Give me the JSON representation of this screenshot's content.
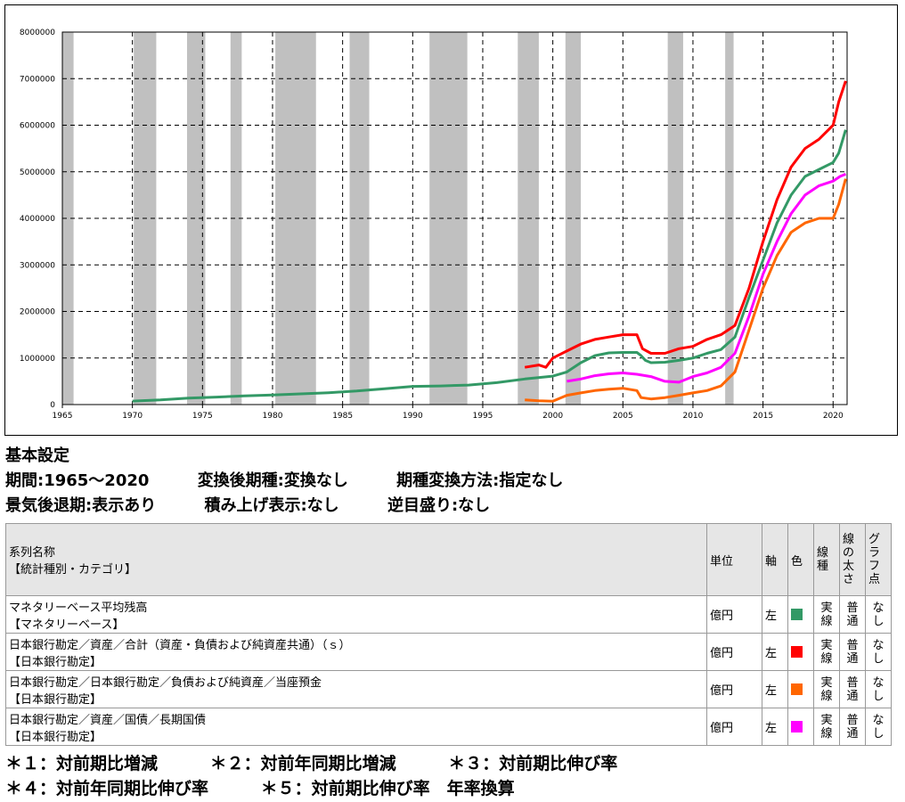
{
  "chart_data": {
    "type": "line",
    "title": "",
    "xlabel": "",
    "ylabel": "",
    "xlim": [
      1965,
      2021
    ],
    "ylim": [
      0,
      8000000
    ],
    "x_ticks": [
      "1965",
      "1970",
      "1975",
      "1980",
      "1985",
      "1990",
      "1995",
      "2000",
      "2005",
      "2010",
      "2015",
      "2020"
    ],
    "y_ticks": [
      "0",
      "1000000",
      "2000000",
      "3000000",
      "4000000",
      "5000000",
      "6000000",
      "7000000",
      "8000000"
    ],
    "grid": true,
    "recessions": [
      [
        1965.0,
        1965.8
      ],
      [
        1970.1,
        1971.7
      ],
      [
        1973.9,
        1975.2
      ],
      [
        1977.0,
        1977.8
      ],
      [
        1980.2,
        1983.1
      ],
      [
        1985.5,
        1986.9
      ],
      [
        1991.2,
        1993.9
      ],
      [
        1997.5,
        1999.0
      ],
      [
        2000.9,
        2002.0
      ],
      [
        2008.2,
        2009.3
      ],
      [
        2012.3,
        2012.9
      ]
    ],
    "series": [
      {
        "name": "マネタリーベース平均残高",
        "color": "#339966",
        "points": [
          [
            1970,
            75000
          ],
          [
            1972,
            100000
          ],
          [
            1974,
            140000
          ],
          [
            1976,
            160000
          ],
          [
            1978,
            185000
          ],
          [
            1980,
            205000
          ],
          [
            1982,
            230000
          ],
          [
            1984,
            255000
          ],
          [
            1986,
            290000
          ],
          [
            1988,
            340000
          ],
          [
            1990,
            390000
          ],
          [
            1992,
            400000
          ],
          [
            1994,
            420000
          ],
          [
            1996,
            470000
          ],
          [
            1998,
            550000
          ],
          [
            2000,
            610000
          ],
          [
            2001,
            700000
          ],
          [
            2002,
            900000
          ],
          [
            2003,
            1050000
          ],
          [
            2004,
            1110000
          ],
          [
            2005,
            1120000
          ],
          [
            2006,
            1120000
          ],
          [
            2006.3,
            1050000
          ],
          [
            2006.6,
            950000
          ],
          [
            2007,
            900000
          ],
          [
            2008,
            910000
          ],
          [
            2009,
            950000
          ],
          [
            2010,
            1000000
          ],
          [
            2011,
            1100000
          ],
          [
            2012,
            1180000
          ],
          [
            2013,
            1450000
          ],
          [
            2014,
            2300000
          ],
          [
            2015,
            3100000
          ],
          [
            2016,
            3900000
          ],
          [
            2017,
            4500000
          ],
          [
            2018,
            4900000
          ],
          [
            2019,
            5050000
          ],
          [
            2020,
            5200000
          ],
          [
            2020.4,
            5400000
          ],
          [
            2020.9,
            5900000
          ]
        ]
      },
      {
        "name": "日本銀行勘定／資産／合計（資産・負債および純資産共通）（ｓ）",
        "color": "#ff0000",
        "points": [
          [
            1998,
            800000
          ],
          [
            1999,
            850000
          ],
          [
            1999.5,
            800000
          ],
          [
            2000,
            1000000
          ],
          [
            2001,
            1150000
          ],
          [
            2002,
            1300000
          ],
          [
            2003,
            1400000
          ],
          [
            2004,
            1450000
          ],
          [
            2005,
            1500000
          ],
          [
            2006,
            1500000
          ],
          [
            2006.4,
            1200000
          ],
          [
            2007,
            1100000
          ],
          [
            2008,
            1100000
          ],
          [
            2009,
            1200000
          ],
          [
            2010,
            1250000
          ],
          [
            2011,
            1400000
          ],
          [
            2012,
            1500000
          ],
          [
            2013,
            1700000
          ],
          [
            2014,
            2500000
          ],
          [
            2015,
            3500000
          ],
          [
            2016,
            4400000
          ],
          [
            2017,
            5100000
          ],
          [
            2018,
            5500000
          ],
          [
            2019,
            5700000
          ],
          [
            2020,
            6000000
          ],
          [
            2020.4,
            6500000
          ],
          [
            2020.9,
            6950000
          ]
        ]
      },
      {
        "name": "日本銀行勘定／日本銀行勘定／負債および純資産／当座預金",
        "color": "#ff6600",
        "points": [
          [
            1998,
            100000
          ],
          [
            1999,
            80000
          ],
          [
            2000,
            70000
          ],
          [
            2001,
            200000
          ],
          [
            2002,
            250000
          ],
          [
            2003,
            300000
          ],
          [
            2004,
            330000
          ],
          [
            2005,
            350000
          ],
          [
            2006,
            300000
          ],
          [
            2006.3,
            150000
          ],
          [
            2007,
            120000
          ],
          [
            2008,
            150000
          ],
          [
            2009,
            200000
          ],
          [
            2010,
            250000
          ],
          [
            2011,
            300000
          ],
          [
            2012,
            400000
          ],
          [
            2013,
            700000
          ],
          [
            2014,
            1600000
          ],
          [
            2015,
            2500000
          ],
          [
            2016,
            3200000
          ],
          [
            2017,
            3700000
          ],
          [
            2018,
            3900000
          ],
          [
            2019,
            4000000
          ],
          [
            2020,
            4000000
          ],
          [
            2020.4,
            4300000
          ],
          [
            2020.9,
            4850000
          ]
        ]
      },
      {
        "name": "日本銀行勘定／資産／国債／長期国債",
        "color": "#ff00ff",
        "points": [
          [
            2001,
            500000
          ],
          [
            2002,
            550000
          ],
          [
            2003,
            620000
          ],
          [
            2004,
            660000
          ],
          [
            2005,
            680000
          ],
          [
            2006,
            650000
          ],
          [
            2007,
            600000
          ],
          [
            2008,
            500000
          ],
          [
            2009,
            480000
          ],
          [
            2010,
            600000
          ],
          [
            2011,
            680000
          ],
          [
            2012,
            800000
          ],
          [
            2013,
            1100000
          ],
          [
            2014,
            1900000
          ],
          [
            2015,
            2800000
          ],
          [
            2016,
            3500000
          ],
          [
            2017,
            4100000
          ],
          [
            2018,
            4500000
          ],
          [
            2019,
            4700000
          ],
          [
            2020,
            4800000
          ],
          [
            2020.5,
            4900000
          ],
          [
            2020.9,
            4950000
          ]
        ]
      }
    ]
  },
  "settings": {
    "heading": "基本設定",
    "period": "期間:1965～2020",
    "converted_period": "変換後期種:変換なし",
    "conversion_method": "期種変換方法:指定なし",
    "recession": "景気後退期:表示あり",
    "stacked": "積み上げ表示:なし",
    "reverse_scale": "逆目盛り:なし"
  },
  "table": {
    "headers": {
      "name": "系列名称",
      "category": "【統計種別・カテゴリ】",
      "unit": "単位",
      "axis": "軸",
      "color": "色",
      "line_type": [
        "線",
        "種"
      ],
      "line_width": [
        "線",
        "の",
        "太",
        "さ"
      ],
      "points": [
        "グ",
        "ラ",
        "フ",
        "点"
      ]
    },
    "rows": [
      {
        "name": "マネタリーベース平均残高",
        "category": "【マネタリーベース】",
        "unit": "億円",
        "axis": "左",
        "color": "#339966",
        "line_type": [
          "実",
          "線"
        ],
        "line_width": [
          "普",
          "通"
        ],
        "points": [
          "な",
          "し"
        ]
      },
      {
        "name": "日本銀行勘定／資産／合計（資産・負債および純資産共通）（ｓ）",
        "category": "【日本銀行勘定】",
        "unit": "億円",
        "axis": "左",
        "color": "#ff0000",
        "line_type": [
          "実",
          "線"
        ],
        "line_width": [
          "普",
          "通"
        ],
        "points": [
          "な",
          "し"
        ]
      },
      {
        "name": "日本銀行勘定／日本銀行勘定／負債および純資産／当座預金",
        "category": "【日本銀行勘定】",
        "unit": "億円",
        "axis": "左",
        "color": "#ff6600",
        "line_type": [
          "実",
          "線"
        ],
        "line_width": [
          "普",
          "通"
        ],
        "points": [
          "な",
          "し"
        ]
      },
      {
        "name": "日本銀行勘定／資産／国債／長期国債",
        "category": "【日本銀行勘定】",
        "unit": "億円",
        "axis": "左",
        "color": "#ff00ff",
        "line_type": [
          "実",
          "線"
        ],
        "line_width": [
          "普",
          "通"
        ],
        "points": [
          "な",
          "し"
        ]
      }
    ]
  },
  "notes": [
    [
      "＊１：対前期比増減",
      "＊２：対前年同期比増減",
      "＊３：対前期比伸び率"
    ],
    [
      "＊４：対前年同期比伸び率",
      "＊５：対前期比伸び率　年率換算"
    ]
  ]
}
